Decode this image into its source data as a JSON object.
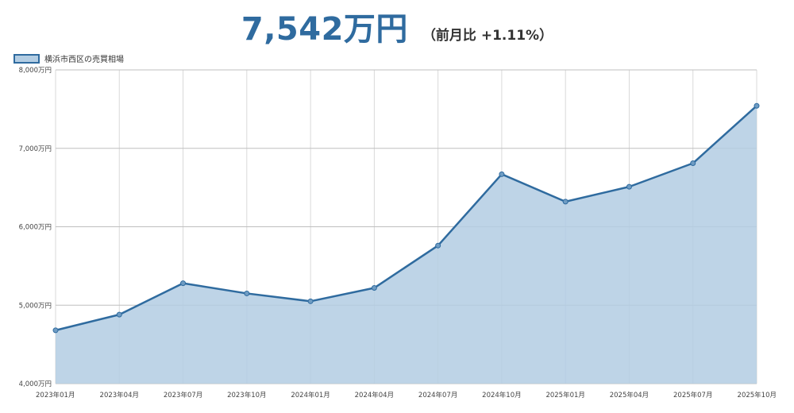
{
  "header": {
    "price": "7,542万円",
    "change": "（前月比 +1.11%）"
  },
  "chart_data": {
    "type": "area",
    "series": [
      {
        "name": "横浜市西区の売買相場",
        "x": [
          "2023年01月",
          "2023年04月",
          "2023年07月",
          "2023年10月",
          "2024年01月",
          "2024年04月",
          "2024年07月",
          "2024年10月",
          "2025年01月",
          "2025年04月",
          "2025年07月",
          "2025年10月"
        ],
        "values": [
          4680,
          4880,
          5280,
          5150,
          5050,
          5220,
          5760,
          6670,
          6320,
          6510,
          6810,
          7542
        ]
      }
    ],
    "ylim": [
      4000,
      8000
    ],
    "yticks": [
      4000,
      5000,
      6000,
      7000,
      8000
    ],
    "ytick_labels": [
      "4,000万円",
      "5,000万円",
      "6,000万円",
      "7,000万円",
      "8,000万円"
    ],
    "xtick_labels": [
      "2023年01月",
      "2023年04月",
      "2023年07月",
      "2023年10月",
      "2024年01月",
      "2024年04月",
      "2024年07月",
      "2024年10月",
      "2025年01月",
      "2025年04月",
      "2025年07月",
      "2025年10月"
    ],
    "legend_position": "top-left",
    "grid": true,
    "colors": {
      "line": "#2f6b9f",
      "fill": "#b3cde3",
      "grid": "#d9d9d9",
      "grid_y": "#bfbfbf"
    }
  }
}
